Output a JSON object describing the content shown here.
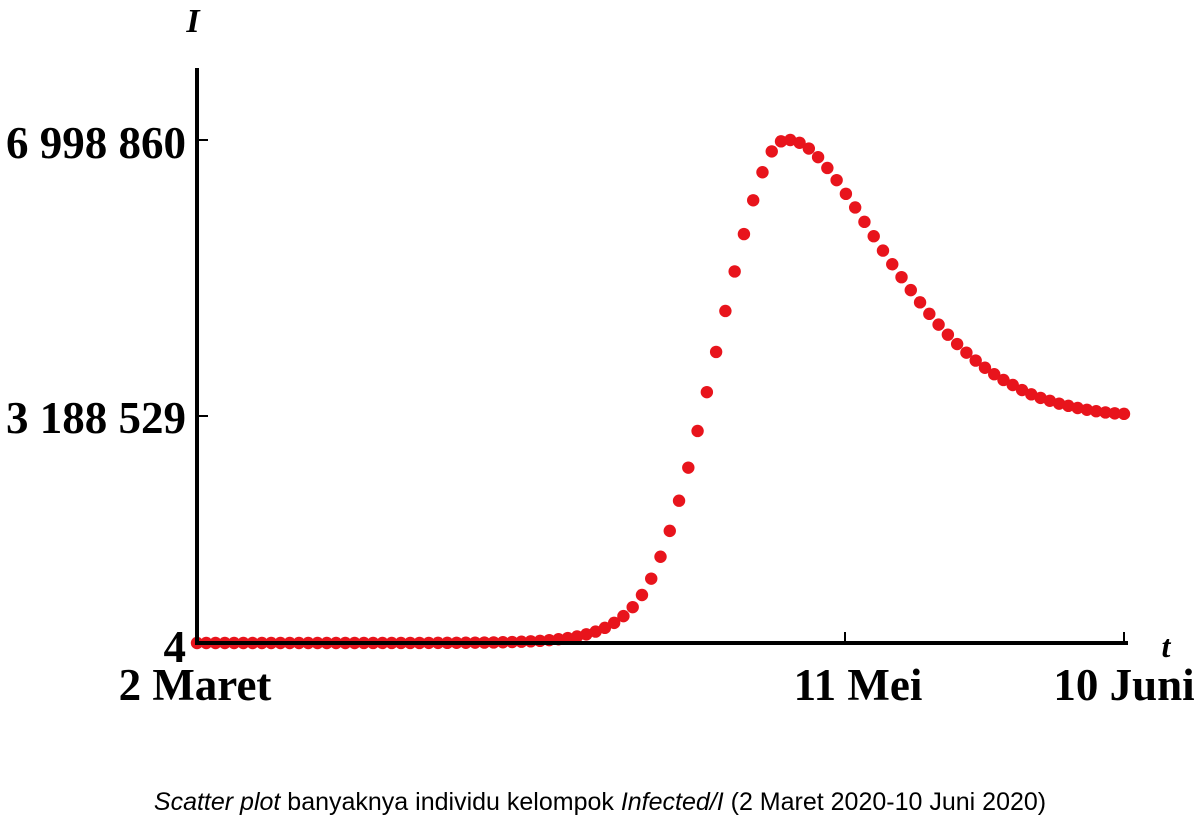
{
  "chart_data": {
    "type": "scatter",
    "ylabel": "I",
    "xlabel": "t",
    "x_tick_labels": [
      "2 Maret",
      "11 Mei",
      "10 Juni"
    ],
    "x_tick_days": [
      0,
      70,
      100
    ],
    "y_tick_labels": [
      "6 998 860",
      "3 188 529",
      "4"
    ],
    "y_tick_values": [
      6998860,
      3188529,
      4
    ],
    "ylim": [
      4,
      6998860
    ],
    "xlim": [
      0,
      100
    ],
    "grid": false,
    "marker_color": "#e8141c",
    "caption": {
      "italic1": "Scatter plot",
      "text1": " banyaknya individu kelompok ",
      "italic2": "Infected/I",
      "text2": "  (2 Maret 2020-10 Juni 2020)"
    },
    "series": [
      {
        "day": [
          0,
          1,
          2,
          3,
          4,
          5,
          6,
          7,
          8,
          9,
          10,
          11,
          12,
          13,
          14,
          15,
          16,
          17,
          18,
          19,
          20,
          21,
          22,
          23,
          24,
          25,
          26,
          27,
          28,
          29,
          30,
          31,
          32,
          33,
          34,
          35,
          36,
          37,
          38,
          39,
          40,
          41,
          42,
          43,
          44,
          45,
          46,
          47,
          48,
          49,
          50,
          51,
          52,
          53,
          54,
          55,
          56,
          57,
          58,
          59,
          60,
          61,
          62,
          63,
          64,
          65,
          66,
          67,
          68,
          69,
          70,
          71,
          72,
          73,
          74,
          75,
          76,
          77,
          78,
          79,
          80,
          81,
          82,
          83,
          84,
          85,
          86,
          87,
          88,
          89,
          90,
          91,
          92,
          93,
          94,
          95,
          96,
          97,
          98,
          99,
          100
        ],
        "values": [
          4,
          4,
          5,
          6,
          7,
          9,
          11,
          14,
          18,
          23,
          29,
          37,
          47,
          60,
          77,
          99,
          127,
          163,
          210,
          271,
          350,
          452,
          584,
          755,
          978,
          1267,
          1642,
          2130,
          2765,
          3592,
          4670,
          6078,
          7920,
          10330,
          13490,
          17640,
          23090,
          30260,
          39720,
          52210,
          68760,
          90700,
          120000,
          159000,
          211000,
          280000,
          374000,
          499000,
          668000,
          895000,
          1200000,
          1560000,
          1980000,
          2440000,
          2950000,
          3490000,
          4050000,
          4620000,
          5170000,
          5690000,
          6160000,
          6550000,
          6840000,
          6980000,
          6998860,
          6960000,
          6880000,
          6760000,
          6610000,
          6440000,
          6250000,
          6060000,
          5860000,
          5660000,
          5460000,
          5270000,
          5090000,
          4910000,
          4740000,
          4580000,
          4430000,
          4290000,
          4160000,
          4040000,
          3930000,
          3830000,
          3740000,
          3660000,
          3590000,
          3520000,
          3460000,
          3410000,
          3370000,
          3330000,
          3300000,
          3270000,
          3245000,
          3225000,
          3208000,
          3195000,
          3188529
        ]
      }
    ]
  }
}
